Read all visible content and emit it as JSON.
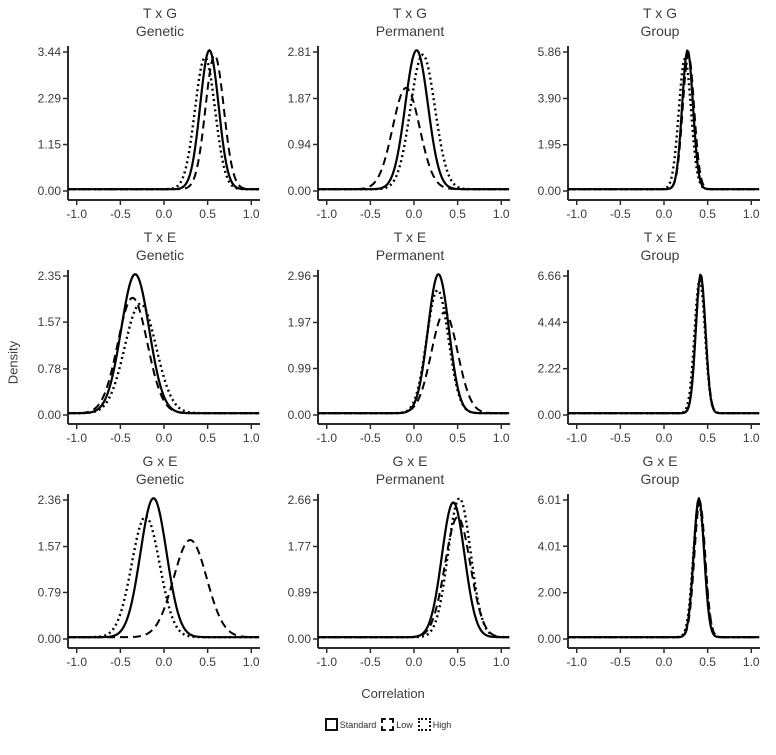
{
  "chart_data": {
    "type": "line",
    "variant": "density-curves",
    "grid": {
      "rows": 3,
      "cols": 3
    },
    "xlabel": "Correlation",
    "ylabel": "Density",
    "xlim": [
      -1.1,
      1.1
    ],
    "x_tick_values": [
      -1.0,
      -0.5,
      0.0,
      0.5,
      1.0
    ],
    "x_tick_labels": [
      "-1.0",
      "-0.5",
      "0.0",
      "0.5",
      "1.0"
    ],
    "colors": {
      "line": "#000000",
      "text": "#3a3a3a",
      "axis": "#2b2b2b",
      "background": "#ffffff"
    },
    "legend": {
      "position": "bottom",
      "entries": [
        {
          "label": "Standard",
          "linestyle": "solid"
        },
        {
          "label": "Low",
          "linestyle": "dashed"
        },
        {
          "label": "High",
          "linestyle": "dotted"
        }
      ]
    },
    "panels": [
      {
        "row_title": "T x G",
        "col_title": "Genetic",
        "y_tick_labels": [
          "0.00",
          "1.15",
          "2.29",
          "3.44"
        ],
        "y_max": 3.44,
        "series": [
          {
            "name": "Standard",
            "linestyle": "solid",
            "mean": 0.52,
            "sd": 0.105,
            "peak": 3.44
          },
          {
            "name": "Low",
            "linestyle": "dashed",
            "mean": 0.58,
            "sd": 0.105,
            "peak": 3.32
          },
          {
            "name": "High",
            "linestyle": "dotted",
            "mean": 0.47,
            "sd": 0.115,
            "peak": 3.26
          }
        ]
      },
      {
        "row_title": "T x G",
        "col_title": "Permanent",
        "y_tick_labels": [
          "0.00",
          "0.94",
          "1.87",
          "2.81"
        ],
        "y_max": 2.81,
        "series": [
          {
            "name": "Standard",
            "linestyle": "solid",
            "mean": 0.03,
            "sd": 0.13,
            "peak": 2.81
          },
          {
            "name": "Low",
            "linestyle": "dashed",
            "mean": -0.09,
            "sd": 0.155,
            "peak": 2.05
          },
          {
            "name": "High",
            "linestyle": "dotted",
            "mean": 0.1,
            "sd": 0.14,
            "peak": 2.72
          }
        ]
      },
      {
        "row_title": "T x G",
        "col_title": "Group",
        "y_tick_labels": [
          "0.00",
          "1.95",
          "3.90",
          "5.86"
        ],
        "y_max": 5.86,
        "series": [
          {
            "name": "Standard",
            "linestyle": "solid",
            "mean": 0.27,
            "sd": 0.062,
            "peak": 5.86
          },
          {
            "name": "Low",
            "linestyle": "dashed",
            "mean": 0.28,
            "sd": 0.065,
            "peak": 5.7
          },
          {
            "name": "High",
            "linestyle": "dotted",
            "mean": 0.24,
            "sd": 0.07,
            "peak": 5.5
          }
        ]
      },
      {
        "row_title": "T x E",
        "col_title": "Genetic",
        "y_tick_labels": [
          "0.00",
          "0.78",
          "1.57",
          "2.35"
        ],
        "y_max": 2.35,
        "series": [
          {
            "name": "Standard",
            "linestyle": "solid",
            "mean": -0.33,
            "sd": 0.16,
            "peak": 2.35
          },
          {
            "name": "Low",
            "linestyle": "dashed",
            "mean": -0.36,
            "sd": 0.17,
            "peak": 1.95
          },
          {
            "name": "High",
            "linestyle": "dotted",
            "mean": -0.27,
            "sd": 0.18,
            "peak": 1.85
          }
        ]
      },
      {
        "row_title": "T x E",
        "col_title": "Permanent",
        "y_tick_labels": [
          "0.00",
          "0.99",
          "1.97",
          "2.96"
        ],
        "y_max": 2.96,
        "series": [
          {
            "name": "Standard",
            "linestyle": "solid",
            "mean": 0.28,
            "sd": 0.12,
            "peak": 2.96
          },
          {
            "name": "Low",
            "linestyle": "dashed",
            "mean": 0.35,
            "sd": 0.15,
            "peak": 2.15
          },
          {
            "name": "High",
            "linestyle": "dotted",
            "mean": 0.27,
            "sd": 0.125,
            "peak": 2.62
          }
        ]
      },
      {
        "row_title": "T x E",
        "col_title": "Group",
        "y_tick_labels": [
          "0.00",
          "2.22",
          "4.44",
          "6.66"
        ],
        "y_max": 6.66,
        "series": [
          {
            "name": "Standard",
            "linestyle": "solid",
            "mean": 0.42,
            "sd": 0.055,
            "peak": 6.66
          },
          {
            "name": "Low",
            "linestyle": "dashed",
            "mean": 0.42,
            "sd": 0.057,
            "peak": 6.5
          },
          {
            "name": "High",
            "linestyle": "dotted",
            "mean": 0.41,
            "sd": 0.06,
            "peak": 6.4
          }
        ]
      },
      {
        "row_title": "G x E",
        "col_title": "Genetic",
        "y_tick_labels": [
          "0.00",
          "0.79",
          "1.57",
          "2.36"
        ],
        "y_max": 2.36,
        "series": [
          {
            "name": "Standard",
            "linestyle": "solid",
            "mean": -0.12,
            "sd": 0.15,
            "peak": 2.36
          },
          {
            "name": "Low",
            "linestyle": "dashed",
            "mean": 0.3,
            "sd": 0.19,
            "peak": 1.65
          },
          {
            "name": "High",
            "linestyle": "dotted",
            "mean": -0.21,
            "sd": 0.16,
            "peak": 2.05
          }
        ]
      },
      {
        "row_title": "G x E",
        "col_title": "Permanent",
        "y_tick_labels": [
          "0.00",
          "0.89",
          "1.77",
          "2.66"
        ],
        "y_max": 2.66,
        "series": [
          {
            "name": "Standard",
            "linestyle": "solid",
            "mean": 0.45,
            "sd": 0.13,
            "peak": 2.58
          },
          {
            "name": "Low",
            "linestyle": "dashed",
            "mean": 0.5,
            "sd": 0.145,
            "peak": 2.3
          },
          {
            "name": "High",
            "linestyle": "dotted",
            "mean": 0.52,
            "sd": 0.13,
            "peak": 2.66
          }
        ]
      },
      {
        "row_title": "G x E",
        "col_title": "Group",
        "y_tick_labels": [
          "0.00",
          "2.00",
          "4.01",
          "6.01"
        ],
        "y_max": 6.01,
        "series": [
          {
            "name": "Standard",
            "linestyle": "solid",
            "mean": 0.4,
            "sd": 0.06,
            "peak": 6.01
          },
          {
            "name": "Low",
            "linestyle": "dashed",
            "mean": 0.41,
            "sd": 0.062,
            "peak": 5.85
          },
          {
            "name": "High",
            "linestyle": "dotted",
            "mean": 0.4,
            "sd": 0.065,
            "peak": 5.8
          }
        ]
      }
    ]
  }
}
